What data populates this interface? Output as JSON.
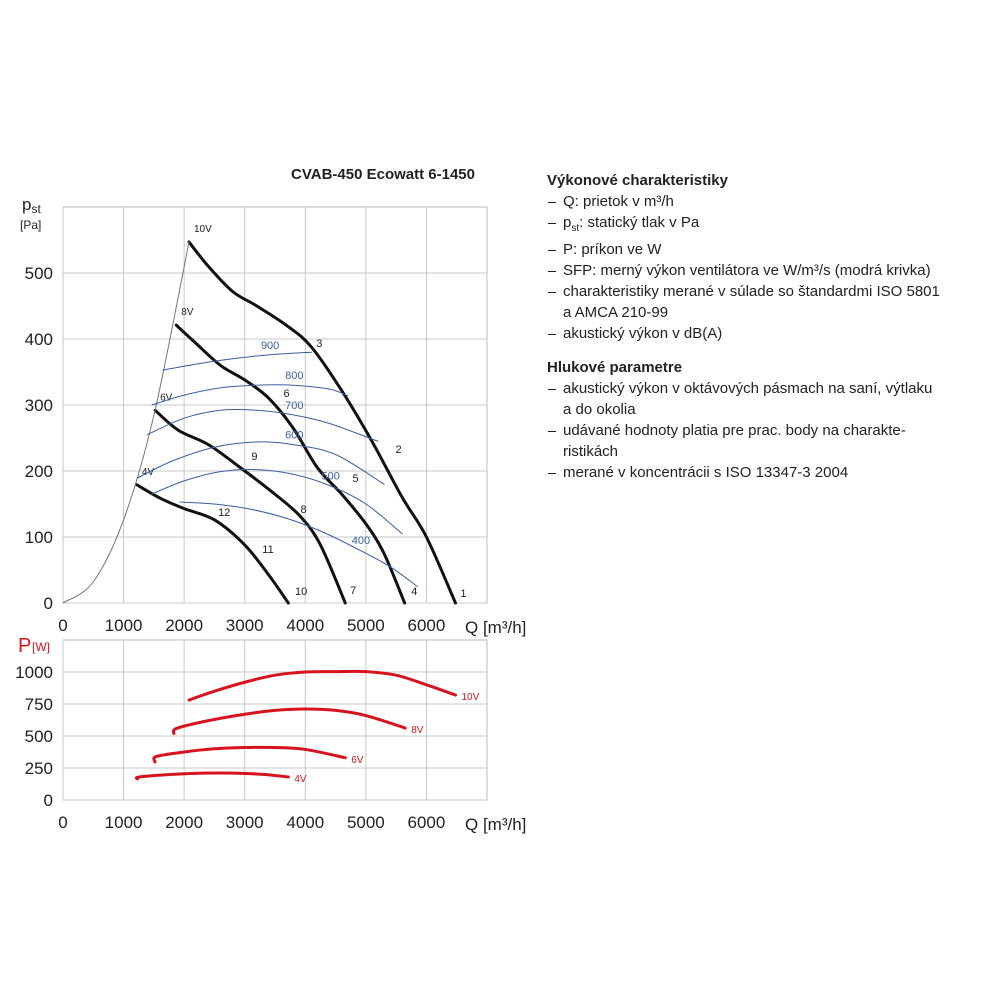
{
  "chart_data": [
    {
      "type": "line",
      "title": "CVAB-450 Ecowatt 6-1450",
      "ylabel": "p",
      "ylabel_sub": "st",
      "yunit": "[Pa]",
      "xlabel": "Q [m³/h]",
      "xlim": [
        0,
        7000
      ],
      "xticks": [
        0,
        1000,
        2000,
        3000,
        4000,
        5000,
        6000
      ],
      "ylim": [
        0,
        600
      ],
      "yticks": [
        0,
        100,
        200,
        300,
        400,
        500
      ],
      "grid": true,
      "series": [
        {
          "name": "10V",
          "color": "#111111",
          "style": "bold",
          "x": [
            2080,
            2400,
            2800,
            3200,
            3700,
            4100,
            4600,
            5100,
            5600,
            6000,
            6480
          ],
          "values": [
            547,
            510,
            472,
            450,
            420,
            388,
            322,
            245,
            160,
            100,
            0
          ]
        },
        {
          "name": "8V",
          "color": "#111111",
          "style": "bold",
          "x": [
            1870,
            2200,
            2600,
            3000,
            3400,
            3800,
            4200,
            4600,
            5000,
            5300,
            5640
          ],
          "values": [
            421,
            393,
            360,
            338,
            310,
            265,
            205,
            165,
            120,
            75,
            0
          ]
        },
        {
          "name": "6V",
          "color": "#111111",
          "style": "bold",
          "x": [
            1520,
            1900,
            2400,
            2900,
            3400,
            3900,
            4250,
            4660
          ],
          "values": [
            292,
            262,
            240,
            207,
            172,
            133,
            88,
            0
          ]
        },
        {
          "name": "4V",
          "color": "#111111",
          "style": "bold",
          "x": [
            1220,
            1600,
            2000,
            2500,
            3000,
            3400,
            3720
          ],
          "values": [
            179,
            159,
            143,
            126,
            88,
            42,
            0
          ]
        },
        {
          "color": "#777777",
          "style": "thin",
          "x": [
            0,
            500,
            1000,
            1500,
            2080
          ],
          "values": [
            0,
            32,
            126,
            284,
            547
          ]
        },
        {
          "name": "900",
          "color": "#3a5fa0",
          "style": "thin",
          "x": [
            1650,
            2200,
            2800,
            3400,
            4100
          ],
          "values": [
            353,
            362,
            370,
            376,
            380
          ]
        },
        {
          "name": "800",
          "color": "#3a5fa0",
          "style": "thin",
          "x": [
            1470,
            2000,
            2600,
            3200,
            3800,
            4400,
            4700
          ],
          "values": [
            300,
            315,
            326,
            330,
            330,
            324,
            314
          ]
        },
        {
          "name": "700",
          "color": "#3a5fa0",
          "style": "thin",
          "x": [
            1390,
            2000,
            2600,
            3200,
            3800,
            4400,
            5200
          ],
          "values": [
            255,
            280,
            292,
            292,
            285,
            272,
            245
          ]
        },
        {
          "name": "600",
          "color": "#3a5fa0",
          "style": "thin",
          "x": [
            1220,
            1800,
            2500,
            3200,
            3800,
            4500,
            5300
          ],
          "values": [
            189,
            215,
            236,
            244,
            240,
            225,
            180
          ]
        },
        {
          "name": "500",
          "color": "#3a5fa0",
          "style": "thin",
          "x": [
            1440,
            2000,
            2600,
            3200,
            3800,
            4400,
            5000,
            5600
          ],
          "values": [
            164,
            185,
            199,
            202,
            195,
            178,
            150,
            105
          ]
        },
        {
          "name": "400",
          "color": "#3a5fa0",
          "style": "thin",
          "x": [
            1930,
            2500,
            3100,
            3700,
            4300,
            4900,
            5400,
            5850
          ],
          "values": [
            153,
            150,
            142,
            128,
            107,
            80,
            55,
            25
          ]
        }
      ],
      "annotations": [
        {
          "text": "1",
          "x": 6560,
          "y": 9
        },
        {
          "text": "2",
          "x": 5490,
          "y": 227
        },
        {
          "text": "3",
          "x": 4180,
          "y": 388
        },
        {
          "text": "4",
          "x": 5750,
          "y": 12
        },
        {
          "text": "5",
          "x": 4780,
          "y": 183
        },
        {
          "text": "6",
          "x": 3640,
          "y": 312
        },
        {
          "text": "7",
          "x": 4740,
          "y": 14
        },
        {
          "text": "8",
          "x": 3920,
          "y": 136
        },
        {
          "text": "9",
          "x": 3110,
          "y": 217
        },
        {
          "text": "10",
          "x": 3830,
          "y": 12
        },
        {
          "text": "11",
          "x": 3290,
          "y": 76
        },
        {
          "text": "12",
          "x": 2560,
          "y": 132
        }
      ]
    },
    {
      "type": "line",
      "ylabel": "P",
      "yunit": "[W]",
      "xlabel": "Q [m³/h]",
      "xlim": [
        0,
        7000
      ],
      "xticks": [
        0,
        1000,
        2000,
        3000,
        4000,
        5000,
        6000
      ],
      "ylim": [
        0,
        1250
      ],
      "yticks": [
        0,
        250,
        500,
        750,
        1000
      ],
      "grid": true,
      "series": [
        {
          "name": "10V",
          "color": "#d7141e",
          "style": "bold",
          "x": [
            2080,
            2500,
            3000,
            3500,
            4000,
            4500,
            5000,
            5500,
            6000,
            6480
          ],
          "values": [
            781,
            850,
            920,
            975,
            1000,
            1003,
            1003,
            975,
            900,
            820
          ]
        },
        {
          "name": "8V",
          "color": "#d7141e",
          "style": "bold",
          "x": [
            1830,
            1880,
            2400,
            3000,
            3500,
            4000,
            4500,
            5000,
            5650
          ],
          "values": [
            520,
            560,
            620,
            670,
            700,
            711,
            700,
            660,
            562
          ]
        },
        {
          "name": "6V",
          "color": "#d7141e",
          "style": "bold",
          "x": [
            1520,
            1540,
            2000,
            2500,
            3000,
            3500,
            4000,
            4660
          ],
          "values": [
            297,
            340,
            375,
            400,
            410,
            410,
            395,
            330
          ]
        },
        {
          "name": "4V",
          "color": "#d7141e",
          "style": "bold",
          "x": [
            1230,
            1260,
            1800,
            2300,
            2800,
            3300,
            3720
          ],
          "values": [
            165,
            180,
            200,
            210,
            210,
            200,
            180
          ]
        }
      ]
    }
  ],
  "text_panel": [
    {
      "heading": "Výkonové charakteristiky",
      "items": [
        [
          "Q: prietok v m³/h"
        ],
        {
          "symbol": "p",
          "subscript": "st",
          "text": ": statický tlak v Pa"
        },
        [
          "P: príkon ve W"
        ],
        [
          "SFP: merný výkon ventilátora ve W/m³/s (modrá krivka)"
        ],
        [
          "charakteristiky merané v súlade so štandardmi ISO 5801",
          "a AMCA 210-99"
        ],
        [
          "akustický výkon v dB(A)"
        ]
      ]
    },
    {
      "heading": "Hlukové parametre",
      "items": [
        [
          "akustický výkon v oktávových pásmach na saní, výtlaku",
          "a do okolia"
        ],
        [
          "udávané hodnoty platia pre prac. body na charakte-",
          "ristikách"
        ],
        [
          "merané v koncentrácii s ISO 13347-3 2004"
        ]
      ]
    }
  ]
}
